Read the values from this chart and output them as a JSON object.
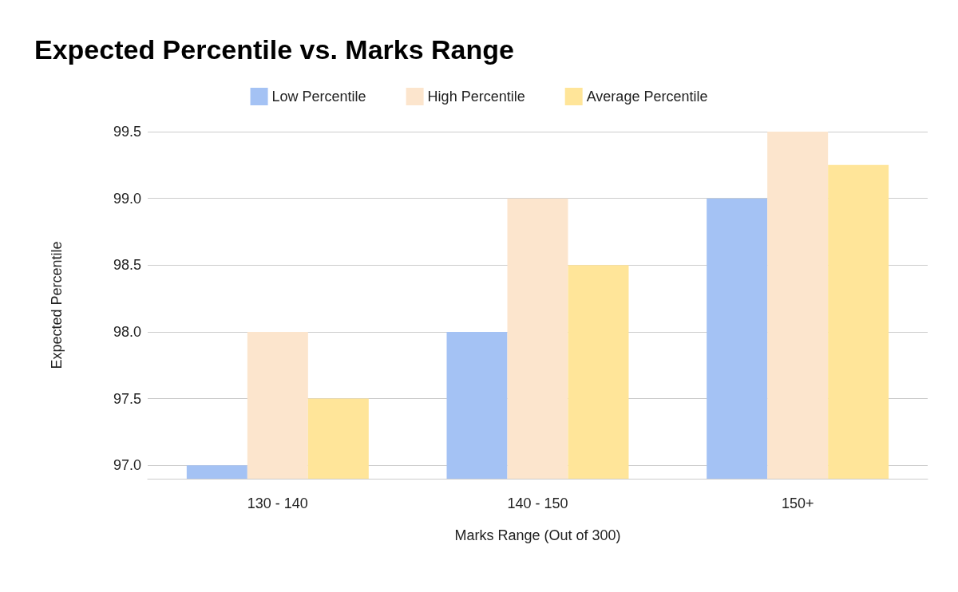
{
  "chart_data": {
    "type": "bar",
    "title": "Expected Percentile vs. Marks Range",
    "xlabel": "Marks Range (Out of 300)",
    "ylabel": "Expected Percentile",
    "categories": [
      "130 - 140",
      "140 - 150",
      "150+"
    ],
    "series": [
      {
        "name": "Low Percentile",
        "color": "#a4c2f4",
        "values": [
          97.0,
          98.0,
          99.0
        ]
      },
      {
        "name": "High Percentile",
        "color": "#fce5cd",
        "values": [
          98.0,
          99.0,
          99.5
        ]
      },
      {
        "name": "Average Percentile",
        "color": "#ffe599",
        "values": [
          97.5,
          98.5,
          99.25
        ]
      }
    ],
    "ylim": [
      96.9,
      99.5
    ],
    "yticks": [
      {
        "value": 97,
        "label": "97.0"
      },
      97.5,
      {
        "value": 98,
        "label": "98.0"
      },
      98.5,
      {
        "value": 99,
        "label": "99.0"
      },
      99.5
    ],
    "grid": true,
    "legend": "top"
  }
}
